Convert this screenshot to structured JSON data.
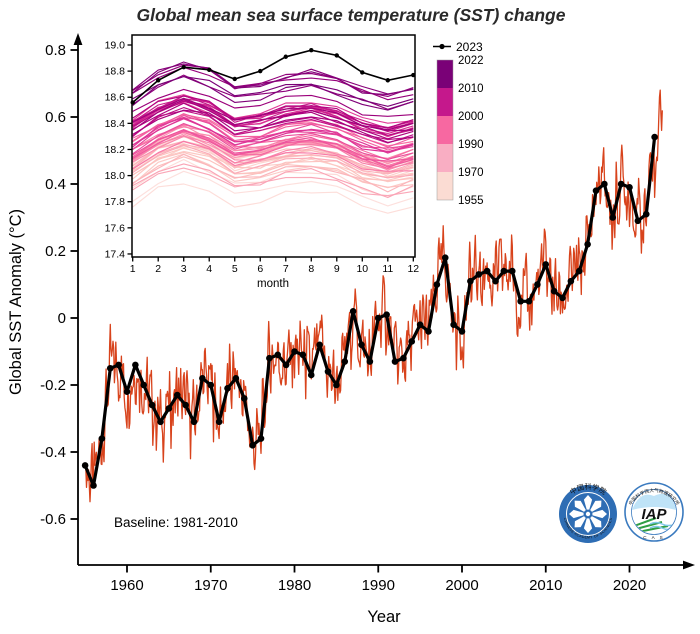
{
  "title": "Global mean sea surface temperature (SST) change",
  "colors": {
    "annual_line": "#000000",
    "monthly_line": "#d8431c",
    "axis": "#000000",
    "inset_2023_line": "#000000",
    "colorbar_segments": [
      "#7a0177",
      "#c5188c",
      "#f768a1",
      "#f9aec3",
      "#fbdcd3"
    ],
    "inset_year_gradient": [
      "#fde0dd",
      "#fcc5c0",
      "#fa9fb5",
      "#f768a1",
      "#dd3497",
      "#ae017e",
      "#7a0177"
    ],
    "logo_cas_blue": "#2e6db4",
    "logo_iap_border": "#3a7abf",
    "logo_iap_text": "#16418e",
    "logo_iap_cloud": "#bfe3f7",
    "logo_iap_green": "#2f9e44",
    "logo_iap_wave": "#7ec8e8",
    "logo_iap_ring_text": "#a03535"
  },
  "chart_data": {
    "type": "line",
    "title": "Global mean sea surface temperature (SST) change",
    "xlabel": "Year",
    "ylabel": "Global SST Anomaly (°C)",
    "baseline_note": "Baseline: 1981-2010",
    "xlim": [
      1954.2,
      2025.5
    ],
    "ylim": [
      -0.74,
      0.85
    ],
    "x_ticks": [
      1960,
      1970,
      1980,
      1990,
      2000,
      2010,
      2020
    ],
    "y_ticks": [
      0.8,
      0.6,
      0.4,
      0.2,
      0,
      -0.2,
      -0.4,
      -0.6
    ],
    "grid": false,
    "series": [
      {
        "name": "annual mean SST anomaly",
        "style": "thick black line with circular markers",
        "years": [
          1955,
          1956,
          1957,
          1958,
          1959,
          1960,
          1961,
          1962,
          1963,
          1964,
          1965,
          1966,
          1967,
          1968,
          1969,
          1970,
          1971,
          1972,
          1973,
          1974,
          1975,
          1976,
          1977,
          1978,
          1979,
          1980,
          1981,
          1982,
          1983,
          1984,
          1985,
          1986,
          1987,
          1988,
          1989,
          1990,
          1991,
          1992,
          1993,
          1994,
          1995,
          1996,
          1997,
          1998,
          1999,
          2000,
          2001,
          2002,
          2003,
          2004,
          2005,
          2006,
          2007,
          2008,
          2009,
          2010,
          2011,
          2012,
          2013,
          2014,
          2015,
          2016,
          2017,
          2018,
          2019,
          2020,
          2021,
          2022,
          2023
        ],
        "values": [
          -0.44,
          -0.5,
          -0.36,
          -0.15,
          -0.14,
          -0.22,
          -0.14,
          -0.2,
          -0.26,
          -0.31,
          -0.27,
          -0.23,
          -0.26,
          -0.31,
          -0.18,
          -0.2,
          -0.31,
          -0.21,
          -0.18,
          -0.24,
          -0.38,
          -0.36,
          -0.12,
          -0.11,
          -0.14,
          -0.1,
          -0.11,
          -0.17,
          -0.08,
          -0.16,
          -0.2,
          -0.13,
          0.02,
          -0.08,
          -0.13,
          0.0,
          0.01,
          -0.13,
          -0.12,
          -0.07,
          -0.02,
          -0.04,
          0.1,
          0.18,
          -0.02,
          -0.04,
          0.11,
          0.13,
          0.14,
          0.11,
          0.14,
          0.14,
          0.05,
          0.05,
          0.1,
          0.16,
          0.08,
          0.06,
          0.11,
          0.14,
          0.22,
          0.38,
          0.4,
          0.3,
          0.4,
          0.39,
          0.29,
          0.31,
          0.54
        ]
      },
      {
        "name": "monthly mean SST anomaly",
        "style": "thin red line oscillating around annual line",
        "monthly_2023": [
          0.36,
          0.41,
          0.46,
          0.48,
          0.47,
          0.53,
          0.6,
          0.66,
          0.68,
          0.61,
          0.56,
          0.62
        ],
        "approx_min": -0.57,
        "approx_max": 0.68
      }
    ],
    "inset": {
      "type": "line",
      "xlabel": "month",
      "x_ticks": [
        1,
        2,
        3,
        4,
        5,
        6,
        7,
        8,
        9,
        10,
        11,
        12
      ],
      "y_ticks": [
        19.0,
        18.8,
        18.6,
        18.4,
        18.2,
        18.0,
        17.8,
        17.6,
        17.4
      ],
      "ylim": [
        17.38,
        19.08
      ],
      "legend_top": "2023",
      "series_2023_monthly_sst": [
        18.56,
        18.73,
        18.83,
        18.81,
        18.74,
        18.8,
        18.91,
        18.96,
        18.92,
        18.79,
        18.73,
        18.77
      ],
      "year_lines_range": [
        1955,
        2022
      ],
      "colorbar_labels": [
        "2022",
        "2010",
        "2000",
        "1990",
        "1970",
        "1955"
      ]
    }
  },
  "logos": {
    "cas": {
      "ring_text_top": "中国科学院",
      "ring_text_bottom": "CHINESE ACADEMY OF SCIENCES"
    },
    "iap": {
      "center_text": "IAP",
      "ring_text_top": "中国科学院大气物理研究所",
      "ring_text_bottom": "C A S"
    }
  }
}
